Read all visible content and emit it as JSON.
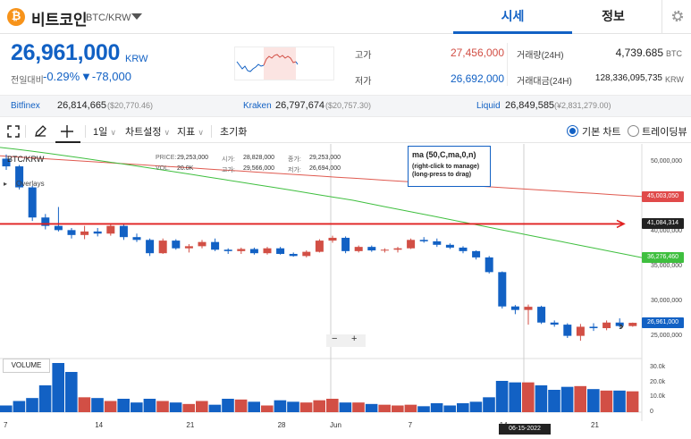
{
  "header": {
    "coin_symbol": "₿",
    "coin_name": "비트코인",
    "pair": "BTC/KRW",
    "tabs": [
      "시세",
      "정보"
    ],
    "settings_icon": "gear-icon"
  },
  "quote": {
    "price": "26,961,000",
    "unit": "KRW",
    "change_label": "전일대비",
    "change_rate": "-0.29%",
    "change_amount": "▼-78,000",
    "high_label": "고가",
    "high_value": "27,456,000",
    "low_label": "저가",
    "low_value": "26,692,000",
    "volume_label": "거래량(24H)",
    "volume_value": "4,739.685",
    "volume_unit": "BTC",
    "amount_label": "거래대금(24H)",
    "amount_value": "128,336,095,735",
    "amount_unit": "KRW"
  },
  "exchanges": [
    {
      "name": "Bitfinex",
      "price": "26,814,665",
      "usd": "($20,770.46)"
    },
    {
      "name": "Kraken",
      "price": "26,797,674",
      "usd": "($20,757.30)"
    },
    {
      "name": "Liquid",
      "price": "26,849,585",
      "usd": "(¥2,831,279.00)"
    }
  ],
  "toolbar": {
    "interval": "1일",
    "chart_settings": "차트설정",
    "indicators": "지표",
    "reset": "초기화",
    "basic_chart": "기본 차트",
    "tradingview": "트레이딩뷰"
  },
  "chart": {
    "symbol": "BTC/KRW",
    "overlays_label": "Overlays",
    "ohlc": {
      "price_label": "PRICE:",
      "price": "29,253,000",
      "open_label": "시가:",
      "open": "28,828,000",
      "close_label": "종가:",
      "close": "29,253,000",
      "vol_label": "VOL:",
      "vol": "20.0K",
      "high_label": "고가:",
      "high": "29,566,000",
      "low_label": "저가:",
      "low": "26,694,000"
    },
    "ma_title": "ma (50,C,ma,0,n)",
    "ma_hint1": "(right-click to manage)",
    "ma_hint2": "(long-press to drag)",
    "volume_label": "VOLUME",
    "zoom_out": "−",
    "zoom_in": "+",
    "y_ticks": [
      "50,000,000",
      "40,000,000",
      "35,000,000",
      "30,000,000",
      "25,000,000"
    ],
    "price_badges": [
      {
        "value": "45,003,050",
        "color": "#e04a4a"
      },
      {
        "value": "41,084,314",
        "color": "#222222"
      },
      {
        "value": "36,276,460",
        "color": "#3fbf3f"
      },
      {
        "value": "26,961,000",
        "color": "#1261c4"
      }
    ],
    "x_ticks": [
      "7",
      "14",
      "21",
      "28",
      "Jun",
      "7",
      "14",
      "21"
    ],
    "crosshair_date": "06-15-2022",
    "vol_ticks": [
      "30.0k",
      "20.0k",
      "10.0k",
      "0"
    ]
  },
  "chart_data": {
    "type": "candlestick",
    "up_color": "#d24f45",
    "down_color": "#1261c4",
    "candles": [
      [
        50400000,
        51000000,
        48800000,
        49300000
      ],
      [
        49300000,
        49500000,
        46000000,
        46300000
      ],
      [
        46300000,
        46500000,
        41500000,
        42000000
      ],
      [
        42000000,
        42500000,
        40300000,
        40800000
      ],
      [
        40800000,
        43500000,
        40000000,
        40200000
      ],
      [
        40200000,
        40500000,
        39000000,
        39500000
      ],
      [
        39500000,
        40800000,
        38900000,
        40000000
      ],
      [
        40000000,
        40500000,
        39300000,
        39700000
      ],
      [
        39700000,
        41000000,
        39400000,
        40800000
      ],
      [
        40800000,
        41200000,
        38800000,
        39200000
      ],
      [
        39200000,
        39700000,
        38500000,
        38800000
      ],
      [
        38800000,
        39000000,
        36500000,
        36900000
      ],
      [
        36900000,
        39000000,
        36800000,
        38700000
      ],
      [
        38700000,
        38900000,
        37400000,
        37600000
      ],
      [
        37600000,
        38200000,
        37000000,
        37900000
      ],
      [
        37900000,
        38800000,
        37600000,
        38500000
      ],
      [
        38500000,
        39000000,
        37200000,
        37400000
      ],
      [
        37400000,
        37600000,
        36800000,
        37200000
      ],
      [
        37200000,
        37700000,
        36800000,
        37500000
      ],
      [
        37500000,
        37700000,
        36700000,
        36900000
      ],
      [
        36900000,
        37800000,
        36700000,
        37600000
      ],
      [
        37600000,
        37800000,
        36700000,
        36800000
      ],
      [
        36800000,
        37000000,
        36400000,
        36500000
      ],
      [
        36500000,
        37300000,
        36300000,
        37100000
      ],
      [
        37100000,
        38900000,
        37000000,
        38700000
      ],
      [
        38700000,
        39400000,
        38400000,
        39100000
      ],
      [
        39100000,
        39300000,
        36900000,
        37200000
      ],
      [
        37200000,
        38000000,
        37000000,
        37800000
      ],
      [
        37800000,
        38000000,
        37100000,
        37300000
      ],
      [
        37300000,
        37600000,
        37000000,
        37400000
      ],
      [
        37400000,
        37800000,
        37000000,
        37600000
      ],
      [
        37600000,
        39000000,
        37500000,
        38800000
      ],
      [
        38800000,
        39200000,
        38400000,
        38600000
      ],
      [
        38600000,
        39000000,
        37800000,
        38100000
      ],
      [
        38100000,
        38300000,
        37500000,
        37700000
      ],
      [
        37700000,
        37900000,
        36900000,
        37200000
      ],
      [
        37200000,
        37300000,
        36000000,
        36300000
      ],
      [
        36300000,
        36500000,
        34000000,
        34200000
      ],
      [
        34200000,
        34300000,
        29000000,
        29300000
      ],
      [
        29300000,
        29500000,
        28200000,
        28800000
      ],
      [
        28800000,
        29566000,
        26694000,
        29253000
      ],
      [
        29253000,
        29400000,
        26800000,
        27000000
      ],
      [
        27000000,
        27300000,
        26400000,
        26700000
      ],
      [
        26700000,
        26900000,
        24800000,
        25100000
      ],
      [
        25100000,
        26800000,
        24400000,
        26400000
      ],
      [
        26400000,
        26900000,
        25800000,
        26200000
      ],
      [
        26200000,
        27300000,
        25900000,
        27000000
      ],
      [
        27000000,
        27600000,
        26300000,
        26500000
      ],
      [
        26500000,
        27000000,
        26400000,
        26961000
      ]
    ],
    "volumes": [
      4500,
      7500,
      9500,
      18000,
      33000,
      27000,
      10000,
      9500,
      7500,
      9000,
      6500,
      9000,
      7500,
      6500,
      5500,
      7500,
      5000,
      9000,
      8500,
      7000,
      4500,
      8000,
      7000,
      6500,
      8000,
      9000,
      6500,
      6500,
      5500,
      5000,
      4500,
      5000,
      4000,
      6000,
      4500,
      6000,
      7000,
      10000,
      21000,
      20000,
      20000,
      18000,
      15000,
      17000,
      17500,
      15500,
      14500,
      14500,
      14000
    ],
    "ma_series": [
      {
        "name": "ma",
        "color": "#e05a50",
        "start": 50800000,
        "end": 45003050
      },
      {
        "name": "ma",
        "color": "#3fbf3f",
        "start": 52000000,
        "end": 36276460
      }
    ],
    "horizontal_line": 41084314,
    "ylim": [
      22500000,
      52500000
    ]
  }
}
